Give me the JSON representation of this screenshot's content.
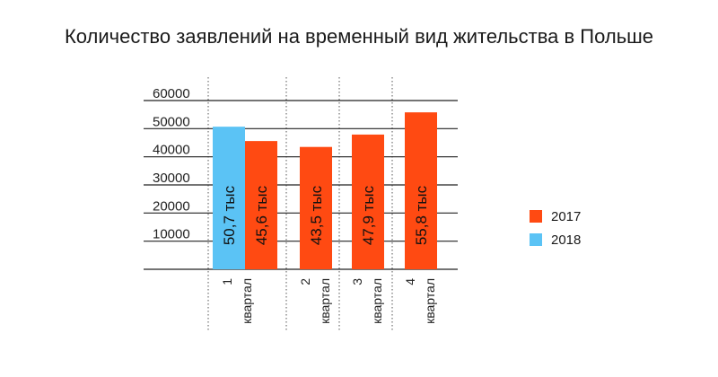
{
  "chart_data": {
    "type": "bar",
    "title": "Количество заявлений на временный вид жительства в Польше",
    "xlabel": "",
    "ylabel": "",
    "ylim": [
      0,
      60000
    ],
    "y_ticks": [
      10000,
      20000,
      30000,
      40000,
      50000,
      60000
    ],
    "categories": [
      "1 квартал",
      "2 квартал",
      "3 квартал",
      "4 квартал"
    ],
    "series": [
      {
        "name": "2018",
        "color": "#5BC3F5",
        "values": [
          50700,
          null,
          null,
          null
        ],
        "labels": [
          "50,7 тыс",
          "",
          "",
          ""
        ]
      },
      {
        "name": "2017",
        "color": "#FF4A12",
        "values": [
          45600,
          43500,
          47900,
          55800
        ],
        "labels": [
          "45,6 тыс",
          "43,5 тыс",
          "47,9 тыс",
          "55,8 тыс"
        ]
      }
    ],
    "grid": true,
    "legend_position": "right",
    "legend_order": [
      "2017",
      "2018"
    ]
  }
}
